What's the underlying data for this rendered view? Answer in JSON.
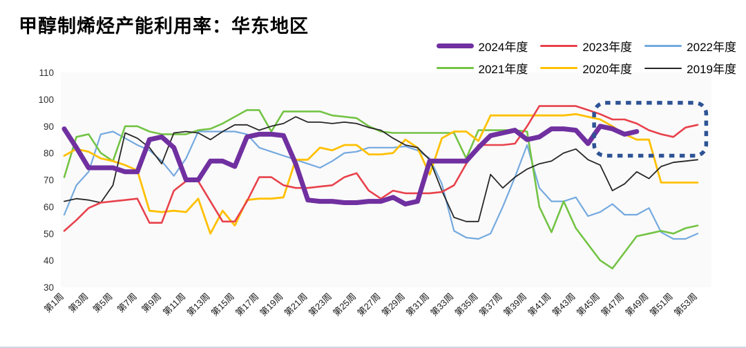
{
  "title": "甲醇制烯烃产能利用率：华东地区",
  "chart_data": {
    "type": "line",
    "title": "甲醇制烯烃产能利用率：华东地区",
    "xlabel": "",
    "ylabel": "",
    "x_unit": "week",
    "x_range": [
      1,
      53
    ],
    "ylim": [
      30,
      110
    ],
    "grid": false,
    "plot_bg": "#fafafa",
    "legend_position": "top-right",
    "y_ticks": [
      30,
      40,
      50,
      60,
      70,
      80,
      90,
      100,
      110
    ],
    "x_tick_labels": [
      "第1周",
      "第3周",
      "第5周",
      "第7周",
      "第9周",
      "第11周",
      "第13周",
      "第15周",
      "第17周",
      "第19周",
      "第21周",
      "第23周",
      "第25周",
      "第27周",
      "第29周",
      "第31周",
      "第33周",
      "第35周",
      "第37周",
      "第39周",
      "第41周",
      "第43周",
      "第45周",
      "第47周",
      "第49周",
      "第51周",
      "第53周"
    ],
    "series": [
      {
        "name": "2024年度",
        "color": "#7030A0",
        "width": 7,
        "start_week": 1,
        "values": [
          89,
          82,
          74.5,
          74.5,
          74.5,
          73,
          73,
          85,
          86,
          82,
          70,
          70,
          77,
          77,
          75,
          86,
          87,
          87,
          86.5,
          76,
          62.5,
          62,
          62,
          61.5,
          61.5,
          62,
          62,
          63.5,
          61,
          62,
          77,
          77,
          77,
          77,
          82,
          86.5,
          87.5,
          88.5,
          85,
          86,
          89,
          89,
          88.5,
          83.5,
          90,
          89,
          87,
          88
        ]
      },
      {
        "name": "2023年度",
        "color": "#E8414B",
        "width": 2.6,
        "start_week": 1,
        "values": [
          51,
          55,
          59.5,
          61.5,
          62,
          62.5,
          63,
          54,
          54,
          66,
          69.5,
          69.5,
          62,
          54.5,
          54.5,
          62,
          71,
          71,
          68,
          67,
          67,
          67.5,
          68,
          71,
          72.5,
          66,
          63,
          66,
          65,
          65,
          65,
          65.5,
          68,
          76,
          83,
          83,
          83,
          83.5,
          90,
          97.5,
          97.5,
          97.5,
          97.5,
          96,
          94.5,
          92.5,
          92.5,
          91,
          88.5,
          87,
          86,
          89.5,
          90.5
        ]
      },
      {
        "name": "2022年度",
        "color": "#74A9DF",
        "width": 2.2,
        "start_week": 1,
        "values": [
          57,
          68,
          73,
          87,
          88,
          85.5,
          83,
          81,
          77,
          71.5,
          78,
          88,
          88,
          88,
          88,
          87,
          82,
          80.5,
          79,
          77.5,
          76,
          74.5,
          77,
          80,
          80.5,
          82,
          82,
          82,
          82.5,
          81,
          78,
          68.5,
          51,
          48.5,
          48,
          50,
          60,
          71,
          83,
          67,
          62,
          62,
          63.5,
          56.5,
          58,
          61,
          57,
          57,
          59.5,
          50.5,
          48,
          48,
          50
        ]
      },
      {
        "name": "2021年度",
        "color": "#73C344",
        "width": 2.6,
        "start_week": 1,
        "values": [
          71,
          86,
          87,
          80,
          77,
          90,
          90,
          88,
          87,
          87,
          87,
          88.5,
          89,
          91,
          93.5,
          96,
          96,
          88,
          95.5,
          95.5,
          95.5,
          95.5,
          94,
          93.5,
          93,
          90,
          88,
          87.5,
          87.5,
          87.5,
          87.5,
          87.5,
          87.5,
          78,
          88.5,
          88.5,
          88.5,
          88.5,
          88,
          60,
          50.5,
          62,
          52,
          46,
          40,
          37,
          43,
          49,
          50,
          51,
          50,
          52,
          53
        ]
      },
      {
        "name": "2020年度",
        "color": "#FFC000",
        "width": 2.8,
        "start_week": 1,
        "values": [
          79,
          81.5,
          80.5,
          78,
          77,
          75.5,
          73.5,
          58.5,
          58,
          58.5,
          58,
          63,
          50,
          58.5,
          53,
          62.5,
          63,
          63,
          63.5,
          77.5,
          77.5,
          82,
          81,
          83,
          83,
          79.5,
          79.5,
          80,
          85,
          82,
          72,
          85.5,
          88,
          88,
          84.5,
          94,
          94,
          94,
          94,
          94,
          94,
          94,
          94.5,
          93.5,
          92.5,
          90,
          87,
          85,
          85,
          69,
          69,
          69,
          69
        ]
      },
      {
        "name": "2019年度",
        "color": "#262626",
        "width": 1.8,
        "start_week": 1,
        "values": [
          62,
          63,
          62.5,
          61.5,
          68,
          87.5,
          85.5,
          82,
          76,
          87.5,
          88,
          87.5,
          85,
          88,
          90.5,
          90.5,
          88.5,
          90,
          91,
          93.5,
          91.5,
          91.5,
          91,
          91.5,
          91,
          89.5,
          88.5,
          85.5,
          83,
          82,
          77.5,
          66,
          56,
          54.5,
          54.5,
          72,
          67,
          71,
          74,
          76,
          77,
          80,
          81.5,
          77.5,
          75.5,
          66,
          68.5,
          73,
          70.5,
          75,
          76.5,
          77,
          77.5
        ]
      }
    ],
    "annotation_box": {
      "shape": "dashed-rounded-rect",
      "color": "#2E5395",
      "x_from_week": 44.5,
      "x_to_week": 53.7,
      "y_from_value": 79,
      "y_to_value": 98.7
    }
  },
  "legend_rows": [
    [
      0,
      1,
      2
    ],
    [
      3,
      4,
      5
    ]
  ]
}
